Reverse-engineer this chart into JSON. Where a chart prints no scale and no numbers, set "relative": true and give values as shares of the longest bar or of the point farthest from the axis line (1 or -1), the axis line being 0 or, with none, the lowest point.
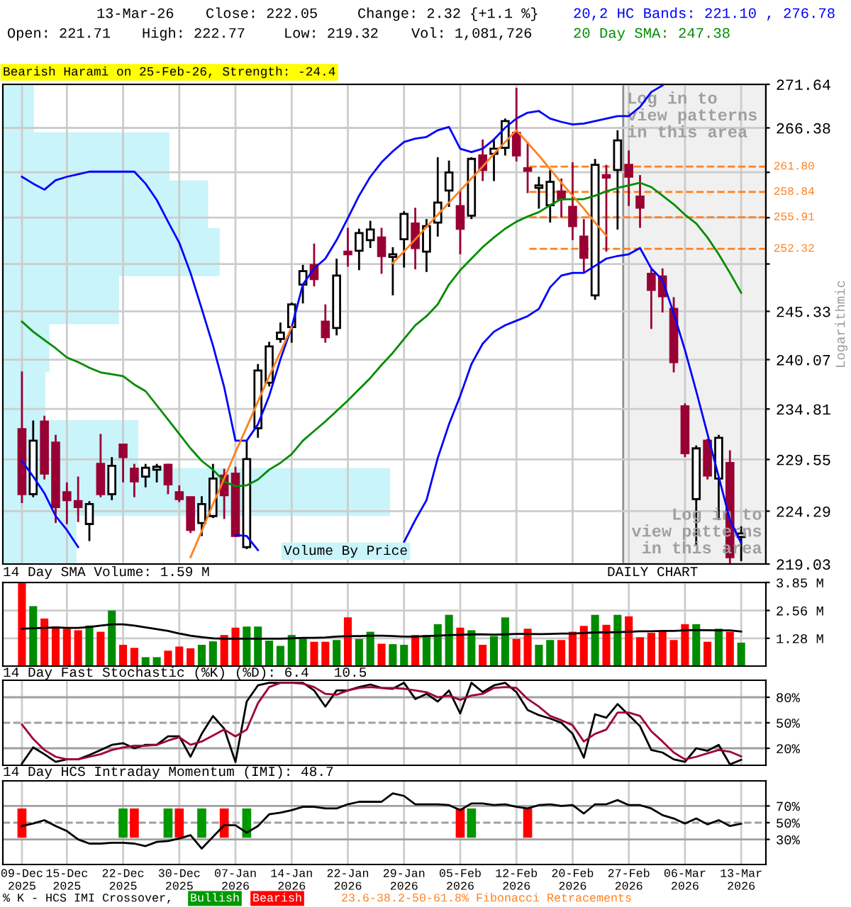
{
  "chart_data": [
    {
      "type": "candlestick",
      "title": "Bearish Harami on 25-Feb-26, Strength: -24.4",
      "ylabel": "Logarithmic",
      "categories": [
        null,
        null,
        null,
        null,
        null,
        null,
        null,
        null,
        null,
        null,
        null,
        null,
        null,
        null,
        null,
        null,
        null,
        null,
        null,
        null,
        null,
        null,
        null,
        null,
        null,
        null,
        null,
        null,
        null,
        null,
        null,
        null,
        null,
        null,
        null,
        null,
        null,
        null,
        null,
        null,
        null,
        null,
        null,
        null,
        null,
        null,
        null,
        null,
        null,
        null,
        null,
        null,
        null,
        null,
        null,
        null,
        null,
        null,
        null,
        null,
        null,
        null,
        null,
        null,
        null
      ],
      "ohlc": [
        [
          232.7,
          238.8,
          225.1,
          226.0
        ],
        [
          226.0,
          233.6,
          225.7,
          231.5
        ],
        [
          233.5,
          234.1,
          227.5,
          228.1
        ],
        [
          231.3,
          232.1,
          223.1,
          224.7
        ],
        [
          226.2,
          227.2,
          223.0,
          225.4
        ],
        [
          225.3,
          227.8,
          223.2,
          224.7
        ],
        [
          223.0,
          225.3,
          221.3,
          225.0
        ],
        [
          229.1,
          232.2,
          225.7,
          226.0
        ],
        [
          226.0,
          229.8,
          225.4,
          228.9
        ],
        [
          231.1,
          231.1,
          227.2,
          229.8
        ],
        [
          228.6,
          229.1,
          225.7,
          227.3
        ],
        [
          227.8,
          229.1,
          226.7,
          228.7
        ],
        [
          228.5,
          229.1,
          227.2,
          228.8
        ],
        [
          229.0,
          229.1,
          226.0,
          227.0
        ],
        [
          226.2,
          226.9,
          225.2,
          225.5
        ],
        [
          225.7,
          225.7,
          222.1,
          222.4
        ],
        [
          223.1,
          225.8,
          221.8,
          225.0
        ],
        [
          223.8,
          229.1,
          223.6,
          227.6
        ],
        [
          227.9,
          228.6,
          223.5,
          225.9
        ],
        [
          228.1,
          228.8,
          221.7,
          221.8
        ],
        [
          220.7,
          231.5,
          220.5,
          229.6
        ],
        [
          232.8,
          239.6,
          231.8,
          238.9
        ],
        [
          237.6,
          242.0,
          237.2,
          241.5
        ],
        [
          242.3,
          244.1,
          241.9,
          243.0
        ],
        [
          243.6,
          246.3,
          241.9,
          246.1
        ],
        [
          248.3,
          250.5,
          246.2,
          249.8
        ],
        [
          250.5,
          252.9,
          248.1,
          248.9
        ],
        [
          244.2,
          246.1,
          241.9,
          242.5
        ],
        [
          243.5,
          251.2,
          242.7,
          249.3
        ],
        [
          252.0,
          254.7,
          250.3,
          251.7
        ],
        [
          252.1,
          254.6,
          249.9,
          254.1
        ],
        [
          253.3,
          255.5,
          252.4,
          254.5
        ],
        [
          253.6,
          254.7,
          249.5,
          251.5
        ],
        [
          251.4,
          252.5,
          247.1,
          251.7
        ],
        [
          253.4,
          256.6,
          250.2,
          256.3
        ],
        [
          255.2,
          257.0,
          250.0,
          252.4
        ],
        [
          252.0,
          255.7,
          249.7,
          254.9
        ],
        [
          255.3,
          262.9,
          253.7,
          257.6
        ],
        [
          259.0,
          262.5,
          257.1,
          261.1
        ],
        [
          257.2,
          259.0,
          251.7,
          254.6
        ],
        [
          256.1,
          262.9,
          255.7,
          262.7
        ],
        [
          263.1,
          265.0,
          260.1,
          261.4
        ],
        [
          263.3,
          265.1,
          260.1,
          263.9
        ],
        [
          264.0,
          267.5,
          263.1,
          267.2
        ],
        [
          265.8,
          271.2,
          262.4,
          263.1
        ],
        [
          261.6,
          264.7,
          258.7,
          261.3
        ],
        [
          259.3,
          260.6,
          256.9,
          259.6
        ],
        [
          257.3,
          261.4,
          255.3,
          260.0
        ],
        [
          258.9,
          260.4,
          255.9,
          258.0
        ],
        [
          257.1,
          262.3,
          253.3,
          254.9
        ],
        [
          253.7,
          255.7,
          249.7,
          251.3
        ],
        [
          247.1,
          262.7,
          246.6,
          262.0
        ],
        [
          260.8,
          262.0,
          252.0,
          260.5
        ],
        [
          261.4,
          266.1,
          254.5,
          264.9
        ],
        [
          262.0,
          263.7,
          257.2,
          260.6
        ],
        [
          258.3,
          260.8,
          254.7,
          257.0
        ],
        [
          249.5,
          250.0,
          243.4,
          247.7
        ],
        [
          249.2,
          250.1,
          245.2,
          247.0
        ],
        [
          245.6,
          246.9,
          238.7,
          239.8
        ],
        [
          235.1,
          235.4,
          229.8,
          230.2
        ],
        [
          225.5,
          231.0,
          220.8,
          230.7
        ],
        [
          231.5,
          231.7,
          227.5,
          227.9
        ],
        [
          227.6,
          232.1,
          223.4,
          231.8
        ],
        [
          229.2,
          230.5,
          219.1,
          219.7
        ],
        [
          221.71,
          222.77,
          219.32,
          222.05
        ]
      ],
      "colors": [
        "#990033",
        "#ffffff",
        "#990033",
        "#990033",
        "#990033",
        "#990033",
        "#ffffff",
        "#990033",
        "#ffffff",
        "#990033",
        "#990033",
        "#ffffff",
        "#ffffff",
        "#990033",
        "#990033",
        "#990033",
        "#ffffff",
        "#ffffff",
        "#990033",
        "#990033",
        "#ffffff",
        "#ffffff",
        "#ffffff",
        "#ffffff",
        "#ffffff",
        "#ffffff",
        "#990033",
        "#990033",
        "#ffffff",
        "#990033",
        "#ffffff",
        "#ffffff",
        "#990033",
        "#ffffff",
        "#ffffff",
        "#990033",
        "#ffffff",
        "#ffffff",
        "#ffffff",
        "#990033",
        "#ffffff",
        "#990033",
        "#ffffff",
        "#ffffff",
        "#990033",
        "#990033",
        "#ffffff",
        "#ffffff",
        "#990033",
        "#990033",
        "#990033",
        "#ffffff",
        "#990033",
        "#ffffff",
        "#990033",
        "#990033",
        "#990033",
        "#990033",
        "#990033",
        "#990033",
        "#ffffff",
        "#990033",
        "#ffffff",
        "#990033",
        "#ffffff"
      ],
      "series": [
        {
          "type": "line",
          "name": "20,2 HC Bands: 221.10 , 276.78",
          "color": "#0000ff",
          "values": [
            260.6,
            259.8,
            259.1,
            260.2,
            260.6,
            260.9,
            261.2,
            261.2,
            261.2,
            261.2,
            261.2,
            259.8,
            257.9,
            255.4,
            253.0,
            249.6,
            245.6,
            241.6,
            237.1,
            231.5,
            231.5,
            233.2,
            236.2,
            240.1,
            243.6,
            248.3,
            250.1,
            251.2,
            253.3,
            255.8,
            258.4,
            260.6,
            262.3,
            263.6,
            264.7,
            265.1,
            265.3,
            266.1,
            266.5,
            263.9,
            263.5,
            263.9,
            265.0,
            266.4,
            267.5,
            268.2,
            268.4,
            267.5,
            267.1,
            266.8,
            266.9,
            267.2,
            267.5,
            267.8,
            267.8,
            268.9,
            270.7,
            271.5,
            null,
            null,
            null,
            null,
            null,
            null,
            null
          ]
        },
        {
          "type": "line",
          "color": "#0000ff",
          "values": [
            229.4,
            227.8,
            226.1,
            223.8,
            222.4,
            220.7,
            null,
            null,
            null,
            null,
            null,
            null,
            null,
            null,
            null,
            null,
            null,
            null,
            null,
            221.9,
            221.8,
            220.4,
            null,
            null,
            null,
            null,
            null,
            null,
            null,
            null,
            null,
            null,
            null,
            null,
            221.2,
            223.4,
            225.4,
            229.7,
            233.2,
            236.2,
            239.6,
            241.8,
            243.1,
            243.8,
            244.3,
            244.8,
            245.6,
            248.0,
            249.3,
            249.6,
            249.6,
            250.4,
            251.2,
            251.5,
            251.7,
            252.4,
            250.1,
            248.8,
            245.1,
            241.1,
            236.7,
            232.2,
            227.8,
            223.4,
            221.1
          ]
        },
        {
          "type": "line",
          "name": "20 Day SMA: 247.38",
          "color": "#008c00",
          "values": [
            244.2,
            243.1,
            242.2,
            241.3,
            240.3,
            239.8,
            239.2,
            238.7,
            238.5,
            238.3,
            237.4,
            236.7,
            235.2,
            233.7,
            232.2,
            230.7,
            229.4,
            228.5,
            227.3,
            226.8,
            226.9,
            227.5,
            228.5,
            229.2,
            230.1,
            231.5,
            232.5,
            233.5,
            234.6,
            235.7,
            236.9,
            238.1,
            239.5,
            240.8,
            242.3,
            243.8,
            244.8,
            246.1,
            248.3,
            249.9,
            251.2,
            252.5,
            253.6,
            254.6,
            255.4,
            256.0,
            256.5,
            257.3,
            258.0,
            258.0,
            258.0,
            258.4,
            258.9,
            259.3,
            259.6,
            259.9,
            259.4,
            258.4,
            257.4,
            256.2,
            255.2,
            253.6,
            251.7,
            249.6,
            247.38
          ]
        },
        {
          "type": "line",
          "color": "#ff8020",
          "values": [
            null,
            null,
            null,
            null,
            null,
            null,
            null,
            null,
            null,
            null,
            null,
            null,
            null,
            null,
            null,
            219.7,
            222.3,
            225.0,
            227.6,
            230.3,
            232.9,
            235.6,
            238.3,
            240.9,
            243.6,
            null,
            null,
            null,
            null,
            null,
            null,
            null,
            null,
            250.7,
            252.0,
            253.4,
            254.8,
            256.2,
            257.6,
            259.0,
            260.4,
            261.8,
            263.3,
            264.7,
            266.1,
            264.6,
            263.1,
            261.5,
            259.9,
            258.4,
            256.9,
            255.3,
            253.8,
            null,
            null,
            null,
            null,
            null,
            null,
            null,
            null,
            null,
            null,
            null,
            null
          ]
        }
      ],
      "log": true,
      "ylim": [
        219.03,
        271.64
      ],
      "yticks": [
        271.64,
        266.38,
        {
          "value": 261.12,
          "label": null
        },
        {
          "value": 255.86,
          "label": null
        },
        {
          "value": 250.6,
          "label": null
        },
        245.33,
        240.07,
        234.81,
        229.55,
        224.29,
        219.03
      ],
      "grid": true,
      "legend": "top right",
      "tick_labels": "y",
      "ref_lines": [
        {
          "axis": "y",
          "value": 261.8,
          "label": "261.80",
          "color": "#ff8020",
          "line_style": "dashed"
        },
        {
          "axis": "y",
          "value": 258.84,
          "label": "258.84",
          "color": "#ff8020",
          "line_style": "dashed"
        },
        {
          "axis": "y",
          "value": 255.91,
          "label": "255.91",
          "color": "#ff8020",
          "line_style": "dashed"
        },
        {
          "axis": "y",
          "value": 252.32,
          "label": "252.32",
          "color": "#ff8020",
          "line_style": "dashed"
        }
      ],
      "annotations": [
        "13-Mar-26",
        "Close: 222.05",
        "Change: 2.32 {+1.1 %}",
        "Open: 221.71",
        "High: 222.77",
        "Low: 219.32",
        "Vol: 1,081,726",
        "Log in to\nview patterns\nin this area",
        "Log in to\nview patterns\nin this area",
        "23.6-38.2-50-61.8% Fibonacci Retracements"
      ]
    },
    {
      "type": "bar",
      "orientation": "horizontal",
      "relative": true,
      "title": "Volume By Price",
      "categories": [
        null,
        null,
        null,
        null,
        null,
        null,
        null,
        null,
        null,
        null
      ],
      "values": [
        0.08,
        0.43,
        0.53,
        0.56,
        0.3,
        0.12,
        0.11,
        0.35,
        1,
        0.19
      ],
      "color": "#c8f4fa"
    },
    {
      "type": "bar",
      "title": "14 Day SMA Volume: 1.59 M",
      "categories": [
        null,
        null,
        null,
        null,
        null,
        null,
        null,
        null,
        null,
        null,
        null,
        null,
        null,
        null,
        null,
        null,
        null,
        null,
        null,
        null,
        null,
        null,
        null,
        null,
        null,
        null,
        null,
        null,
        null,
        null,
        null,
        null,
        null,
        null,
        null,
        null,
        null,
        null,
        null,
        null,
        null,
        null,
        null,
        null,
        null,
        null,
        null,
        null,
        null,
        null,
        null,
        null,
        null,
        null,
        null,
        null,
        null,
        null,
        null,
        null,
        null,
        null,
        null,
        null,
        null
      ],
      "values": [
        3.85,
        2.76,
        2.19,
        1.82,
        1.72,
        1.65,
        1.87,
        1.58,
        2.56,
        0.98,
        0.84,
        0.41,
        0.41,
        0.71,
        0.9,
        0.82,
        0.98,
        1.14,
        1.43,
        1.77,
        1.82,
        1.82,
        1.17,
        0.93,
        1.43,
        1.33,
        1.12,
        1.12,
        1.2,
        2.24,
        1.25,
        1.58,
        1.03,
        1.01,
        0.98,
        1.43,
        1.43,
        1.93,
        2.36,
        1.77,
        1.65,
        0.98,
        1.38,
        2.24,
        1.25,
        1.72,
        0.98,
        1.2,
        1.2,
        1.58,
        1.85,
        2.36,
        1.9,
        2.36,
        2.29,
        1.33,
        1.53,
        1.61,
        1.2,
        1.93,
        1.93,
        1.12,
        1.72,
        1.58,
        1.08
      ],
      "colors": [
        "#ff0000",
        "#008c00",
        "#ff0000",
        "#ff0000",
        "#ff0000",
        "#ff0000",
        "#008c00",
        "#ff0000",
        "#008c00",
        "#ff0000",
        "#ff0000",
        "#008c00",
        "#008c00",
        "#ff0000",
        "#ff0000",
        "#ff0000",
        "#008c00",
        "#008c00",
        "#ff0000",
        "#ff0000",
        "#008c00",
        "#008c00",
        "#008c00",
        "#008c00",
        "#008c00",
        "#008c00",
        "#ff0000",
        "#ff0000",
        "#008c00",
        "#ff0000",
        "#008c00",
        "#008c00",
        "#ff0000",
        "#008c00",
        "#008c00",
        "#ff0000",
        "#008c00",
        "#008c00",
        "#008c00",
        "#ff0000",
        "#008c00",
        "#ff0000",
        "#008c00",
        "#008c00",
        "#ff0000",
        "#ff0000",
        "#008c00",
        "#008c00",
        "#ff0000",
        "#ff0000",
        "#ff0000",
        "#008c00",
        "#ff0000",
        "#008c00",
        "#ff0000",
        "#ff0000",
        "#ff0000",
        "#ff0000",
        "#ff0000",
        "#ff0000",
        "#008c00",
        "#ff0000",
        "#008c00",
        "#ff0000",
        "#008c00"
      ],
      "series": [
        {
          "type": "line",
          "color": "#000000",
          "values": [
            1.72,
            1.74,
            1.76,
            1.78,
            1.76,
            1.76,
            1.8,
            1.86,
            1.92,
            1.92,
            1.86,
            1.78,
            1.7,
            1.62,
            1.5,
            1.4,
            1.33,
            1.28,
            1.26,
            1.26,
            1.26,
            1.26,
            1.26,
            1.26,
            1.28,
            1.3,
            1.3,
            1.32,
            1.36,
            1.38,
            1.38,
            1.4,
            1.4,
            1.38,
            1.36,
            1.36,
            1.38,
            1.4,
            1.42,
            1.44,
            1.46,
            1.46,
            1.45,
            1.46,
            1.48,
            1.48,
            1.47,
            1.48,
            1.5,
            1.5,
            1.52,
            1.55,
            1.55,
            1.56,
            1.58,
            1.6,
            1.6,
            1.62,
            1.62,
            1.64,
            1.66,
            1.65,
            1.64,
            1.64,
            1.59
          ]
        }
      ],
      "ylim": [
        0,
        3.85
      ],
      "yticks": [
        {
          "value": 3.85,
          "label": "3.85 M"
        },
        {
          "value": 2.56,
          "label": "2.56 M"
        },
        {
          "value": 1.28,
          "label": "1.28 M"
        }
      ],
      "grid": true,
      "tick_labels": "y",
      "annotations": [
        "DAILY CHART"
      ]
    },
    {
      "type": "line",
      "title": "14 Day Fast Stochastic (%K) (%D): 6.4   10.5",
      "categories": [
        null,
        null,
        null,
        null,
        null,
        null,
        null,
        null,
        null,
        null,
        null,
        null,
        null,
        null,
        null,
        null,
        null,
        null,
        null,
        null,
        null,
        null,
        null,
        null,
        null,
        null,
        null,
        null,
        null,
        null,
        null,
        null,
        null,
        null,
        null,
        null,
        null,
        null,
        null,
        null,
        null,
        null,
        null,
        null,
        null,
        null,
        null,
        null,
        null,
        null,
        null,
        null,
        null,
        null,
        null,
        null,
        null,
        null,
        null,
        null,
        null,
        null,
        null,
        null,
        null
      ],
      "series": [
        {
          "color": "#000000",
          "values": [
            2,
            21,
            13,
            4,
            7,
            7,
            12,
            18,
            24,
            26,
            20,
            24,
            24,
            34,
            34,
            10,
            37,
            58,
            43,
            4,
            75,
            94,
            97,
            97,
            97,
            97,
            88,
            69,
            88,
            88,
            92,
            95,
            91,
            90,
            97,
            78,
            84,
            75,
            88,
            61,
            97,
            86,
            94,
            97,
            86,
            65,
            59,
            55,
            50,
            37,
            9,
            60,
            56,
            72,
            59,
            46,
            18,
            15,
            7,
            4,
            20,
            17,
            24,
            1,
            6.4
          ]
        },
        {
          "color": "#a0003c",
          "values": [
            48,
            31,
            18,
            10,
            7,
            7,
            10,
            13,
            18,
            21,
            23,
            23,
            24,
            29,
            33,
            24,
            28,
            35,
            42,
            34,
            42,
            73,
            92,
            97,
            97,
            96,
            92,
            84,
            83,
            88,
            91,
            92,
            91,
            91,
            90,
            88,
            86,
            80,
            82,
            77,
            82,
            84,
            91,
            92,
            91,
            78,
            69,
            58,
            53,
            47,
            28,
            37,
            42,
            62,
            62,
            58,
            40,
            28,
            15,
            7,
            10,
            14,
            18,
            16,
            10.5
          ]
        }
      ],
      "ylim": [
        0,
        100
      ],
      "yticks": [
        {
          "value": 80,
          "label": "80%"
        },
        {
          "value": 50,
          "label": "50%"
        },
        {
          "value": 20,
          "label": "20%"
        }
      ],
      "grid": "x",
      "tick_labels": "y",
      "ref_lines": [
        {
          "axis": "y",
          "value": 80,
          "color": "#a0a0a0",
          "line_style": "solid"
        },
        {
          "axis": "y",
          "value": 50,
          "color": "#a0a0a0",
          "line_style": "dashed"
        },
        {
          "axis": "y",
          "value": 20,
          "color": "#a0a0a0",
          "line_style": "solid"
        }
      ]
    },
    {
      "type": "line",
      "title": "14 Day HCS Intraday Momentum (IMI): 48.7",
      "categories": [
        "09-Dec\n2025",
        null,
        null,
        null,
        "15-Dec\n2025",
        null,
        null,
        null,
        null,
        "22-Dec\n2025",
        null,
        null,
        null,
        null,
        "30-Dec\n2025",
        null,
        null,
        null,
        null,
        "07-Jan\n2026",
        null,
        null,
        null,
        null,
        "14-Jan\n2026",
        null,
        null,
        null,
        null,
        "22-Jan\n2026",
        null,
        null,
        null,
        null,
        "29-Jan\n2026",
        null,
        null,
        null,
        null,
        "05-Feb\n2026",
        null,
        null,
        null,
        null,
        "12-Feb\n2026",
        null,
        null,
        null,
        null,
        "20-Feb\n2026",
        null,
        null,
        null,
        null,
        "27-Feb\n2026",
        null,
        null,
        null,
        null,
        "06-Mar\n2026",
        null,
        null,
        null,
        null,
        "13-Mar\n2026"
      ],
      "series": [
        {
          "type": "line",
          "color": "#000000",
          "values": [
            46,
            49,
            53,
            46,
            40,
            30,
            25,
            25,
            26,
            26,
            25,
            22,
            27,
            28,
            31,
            35,
            19,
            33,
            47,
            47,
            38,
            46,
            60,
            62,
            65,
            69,
            69,
            67,
            67,
            72,
            75,
            75,
            75,
            85,
            82,
            72,
            72,
            72,
            71,
            65,
            73,
            73,
            71,
            72,
            69,
            67,
            71,
            72,
            70,
            71,
            61,
            72,
            72,
            77,
            71,
            71,
            67,
            59,
            55,
            49,
            55,
            48,
            53,
            46,
            48.7
          ]
        },
        {
          "type": "bar",
          "name": "Bullish",
          "color": "#009900",
          "values": [
            null,
            null,
            null,
            null,
            null,
            null,
            null,
            null,
            null,
            35,
            null,
            null,
            null,
            35,
            null,
            null,
            35,
            null,
            null,
            null,
            35,
            null,
            null,
            null,
            null,
            null,
            null,
            null,
            null,
            null,
            null,
            null,
            null,
            null,
            null,
            null,
            null,
            null,
            null,
            null,
            35,
            null,
            null,
            null,
            null,
            null,
            null,
            null,
            null,
            null,
            null,
            null,
            null,
            null,
            null,
            null,
            null,
            null,
            null,
            null,
            null,
            null,
            null,
            null,
            null
          ],
          "base": [
            null,
            null,
            null,
            null,
            null,
            null,
            null,
            null,
            null,
            32,
            null,
            null,
            null,
            32,
            null,
            null,
            32,
            null,
            null,
            null,
            32,
            null,
            null,
            null,
            null,
            null,
            null,
            null,
            null,
            null,
            null,
            null,
            null,
            null,
            null,
            null,
            null,
            null,
            null,
            null,
            32,
            null,
            null,
            null,
            null,
            null,
            null,
            null,
            null,
            null,
            null,
            null,
            null,
            null,
            null,
            null,
            null,
            null,
            null,
            null,
            null,
            null,
            null,
            null,
            null
          ]
        },
        {
          "type": "bar",
          "name": "Bearish",
          "color": "#ff0000",
          "values": [
            35,
            null,
            null,
            null,
            null,
            null,
            null,
            null,
            null,
            null,
            35,
            null,
            null,
            null,
            35,
            null,
            null,
            null,
            35,
            null,
            null,
            null,
            null,
            null,
            null,
            null,
            null,
            null,
            null,
            null,
            null,
            null,
            null,
            null,
            null,
            null,
            null,
            null,
            null,
            35,
            null,
            null,
            null,
            null,
            null,
            35,
            null,
            null,
            null,
            null,
            null,
            null,
            null,
            null,
            null,
            null,
            null,
            null,
            null,
            null,
            null,
            null,
            null,
            null,
            null
          ],
          "base": [
            32,
            null,
            null,
            null,
            null,
            null,
            null,
            null,
            null,
            null,
            32,
            null,
            null,
            null,
            32,
            null,
            null,
            null,
            32,
            null,
            null,
            null,
            null,
            null,
            null,
            null,
            null,
            null,
            null,
            null,
            null,
            null,
            null,
            null,
            null,
            null,
            null,
            null,
            null,
            32,
            null,
            null,
            null,
            null,
            null,
            32,
            null,
            null,
            null,
            null,
            null,
            null,
            null,
            null,
            null,
            null,
            null,
            null,
            null,
            null,
            null,
            null,
            null,
            null,
            null
          ]
        }
      ],
      "ylim": [
        0,
        100
      ],
      "yticks": [
        {
          "value": 70,
          "label": "70%"
        },
        {
          "value": 50,
          "label": "50%"
        },
        {
          "value": 30,
          "label": "30%"
        }
      ],
      "grid": "x",
      "legend": "bottom",
      "ref_lines": [
        {
          "axis": "y",
          "value": 70,
          "color": "#a0a0a0",
          "line_style": "solid"
        },
        {
          "axis": "y",
          "value": 50,
          "color": "#a0a0a0",
          "line_style": "dashed"
        },
        {
          "axis": "y",
          "value": 30,
          "color": "#a0a0a0",
          "line_style": "solid"
        }
      ],
      "annotations": [
        "% K - HCS IMI Crossover,"
      ]
    }
  ]
}
